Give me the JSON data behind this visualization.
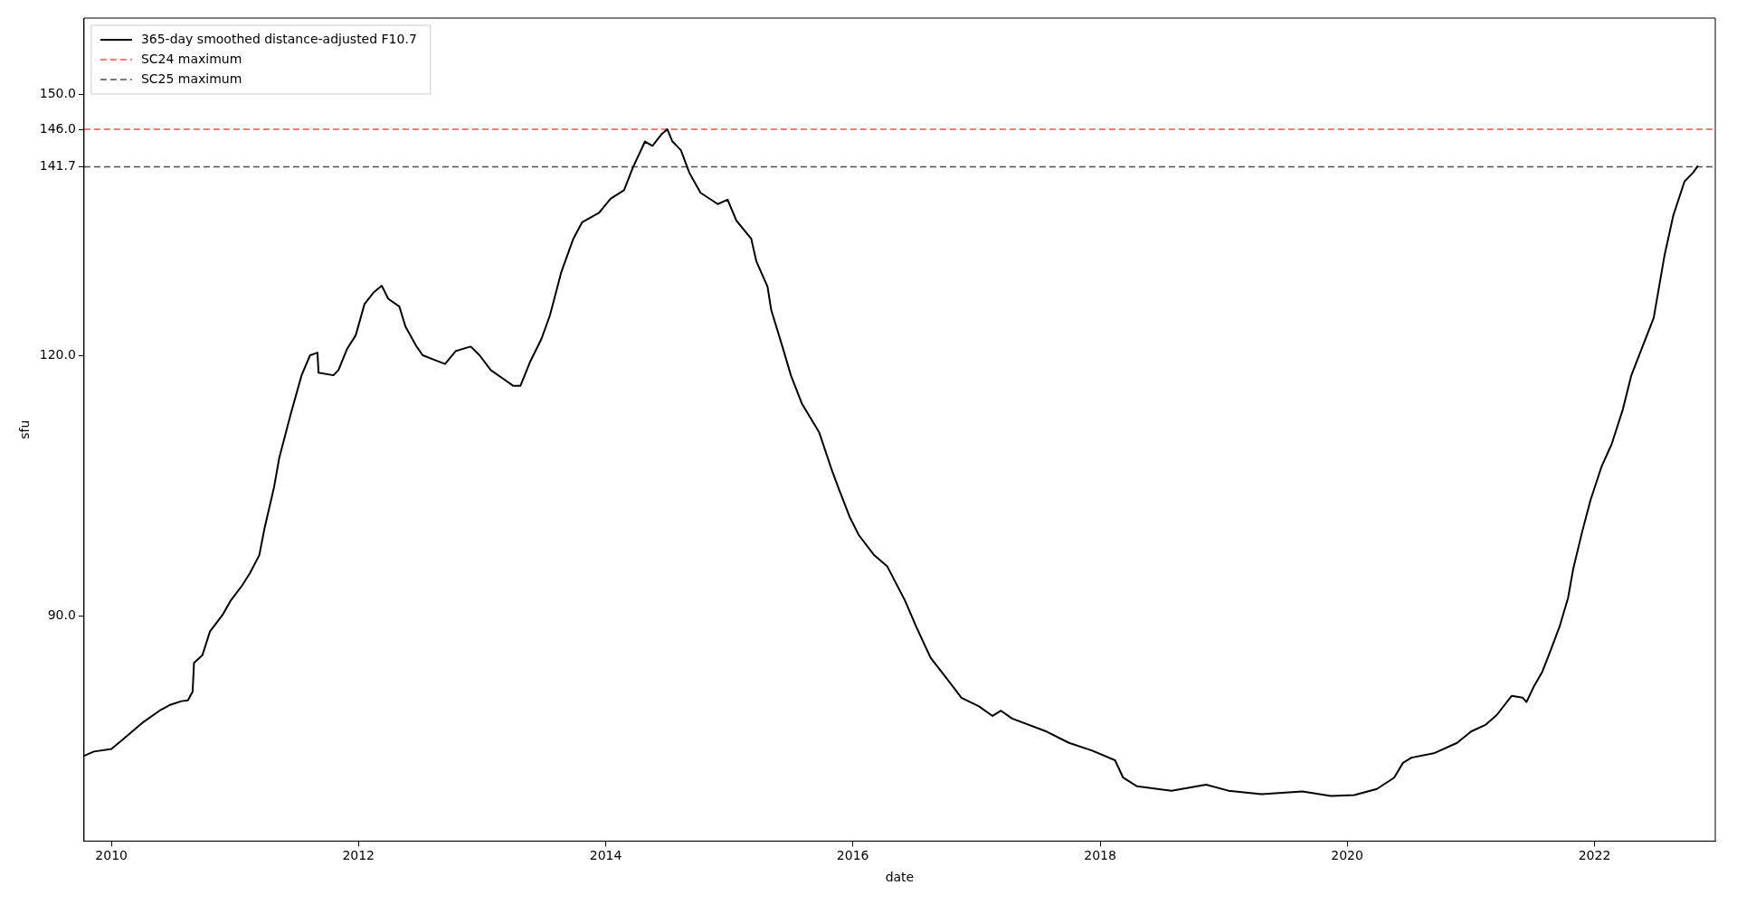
{
  "chart_data": {
    "type": "line",
    "xlabel": "date",
    "ylabel": "sfu",
    "x": [
      "2009-10-12",
      "2009-11-10",
      "2010-01-01",
      "2010-02-10",
      "2010-04-02",
      "2010-05-23",
      "2010-06-25",
      "2010-07-27",
      "2010-08-15",
      "2010-08-29",
      "2010-09-02",
      "2010-09-27",
      "2010-10-19",
      "2010-11-25",
      "2010-12-20",
      "2011-01-22",
      "2011-02-14",
      "2011-03-14",
      "2011-03-29",
      "2011-04-27",
      "2011-05-12",
      "2011-06-14",
      "2011-07-17",
      "2011-08-11",
      "2011-09-02",
      "2011-09-05",
      "2011-10-19",
      "2011-11-03",
      "2011-11-28",
      "2011-12-24",
      "2012-01-19",
      "2012-02-14",
      "2012-03-10",
      "2012-03-29",
      "2012-05-01",
      "2012-05-19",
      "2012-06-21",
      "2012-07-09",
      "2012-08-11",
      "2012-09-13",
      "2012-10-15",
      "2012-11-28",
      "2012-12-24",
      "2013-01-26",
      "2013-02-28",
      "2013-04-02",
      "2013-04-24",
      "2013-05-23",
      "2013-06-25",
      "2013-07-20",
      "2013-08-22",
      "2013-09-27",
      "2013-10-23",
      "2013-12-12",
      "2014-01-15",
      "2014-02-24",
      "2014-03-22",
      "2014-04-27",
      "2014-05-19",
      "2014-06-14",
      "2014-07-02",
      "2014-07-17",
      "2014-08-11",
      "2014-09-05",
      "2014-10-08",
      "2014-11-28",
      "2014-12-27",
      "2015-01-22",
      "2015-03-07",
      "2015-03-22",
      "2015-04-24",
      "2015-05-05",
      "2015-06-07",
      "2015-07-02",
      "2015-08-04",
      "2015-09-24",
      "2015-10-30",
      "2015-11-21",
      "2015-12-24",
      "2016-01-19",
      "2016-03-04",
      "2016-04-12",
      "2016-06-03",
      "2016-07-06",
      "2016-08-18",
      "2016-09-27",
      "2016-11-17",
      "2017-01-08",
      "2017-02-17",
      "2017-03-14",
      "2017-04-16",
      "2017-07-27",
      "2017-10-01",
      "2017-12-09",
      "2018-02-14",
      "2018-03-10",
      "2018-04-20",
      "2018-07-31",
      "2018-11-10",
      "2019-01-15",
      "2019-04-23",
      "2019-08-22",
      "2019-11-14",
      "2020-01-22",
      "2020-03-29",
      "2020-05-19",
      "2020-06-14",
      "2020-07-09",
      "2020-09-13",
      "2020-11-21",
      "2021-01-01",
      "2021-02-14",
      "2021-03-18",
      "2021-05-01",
      "2021-06-03",
      "2021-06-14",
      "2021-07-06",
      "2021-07-31",
      "2021-08-26",
      "2021-09-20",
      "2021-10-15",
      "2021-10-30",
      "2021-11-25",
      "2021-12-20",
      "2022-01-22",
      "2022-02-21",
      "2022-03-26",
      "2022-04-20",
      "2022-05-23",
      "2022-06-25",
      "2022-07-27",
      "2022-08-22",
      "2022-09-24",
      "2022-10-19",
      "2022-11-03"
    ],
    "series": [
      {
        "name": "365-day smoothed distance-adjusted F10.7",
        "color": "#000000",
        "values": [
          73.9,
          74.4,
          74.7,
          76.0,
          77.7,
          79.1,
          79.8,
          80.2,
          80.3,
          81.3,
          84.6,
          85.5,
          88.2,
          90.1,
          91.8,
          93.5,
          94.9,
          97.0,
          100.0,
          104.9,
          108.2,
          113.1,
          117.7,
          120.0,
          120.3,
          118.0,
          117.7,
          118.3,
          120.7,
          122.3,
          125.9,
          127.2,
          128.0,
          126.5,
          125.6,
          123.3,
          121.0,
          120.0,
          119.5,
          119.0,
          120.5,
          121.0,
          120.0,
          118.3,
          117.4,
          116.5,
          116.5,
          119.3,
          121.9,
          124.6,
          129.5,
          133.4,
          135.3,
          136.4,
          138.0,
          139.0,
          141.6,
          144.6,
          144.1,
          145.4,
          146.0,
          144.6,
          143.6,
          141.0,
          138.7,
          137.4,
          137.9,
          135.5,
          133.4,
          130.8,
          127.9,
          125.2,
          121.0,
          117.7,
          114.4,
          111.1,
          106.9,
          104.6,
          101.3,
          99.3,
          97.0,
          95.7,
          91.8,
          88.8,
          85.2,
          83.2,
          80.6,
          79.6,
          78.5,
          79.1,
          78.2,
          76.7,
          75.4,
          74.5,
          73.4,
          71.4,
          70.4,
          69.9,
          70.6,
          69.9,
          69.5,
          69.8,
          69.3,
          69.4,
          70.1,
          71.4,
          73.1,
          73.7,
          74.2,
          75.4,
          76.7,
          77.5,
          78.6,
          80.8,
          80.6,
          80.1,
          81.9,
          83.6,
          86.2,
          88.8,
          92.1,
          95.4,
          99.6,
          103.3,
          107.2,
          109.8,
          113.8,
          117.7,
          121.0,
          124.3,
          131.5,
          136.1,
          140.0,
          141.0,
          141.8
        ]
      }
    ],
    "ref_lines": [
      {
        "axis": "y",
        "value": 146.0,
        "label": "SC24 maximum",
        "color": "#ff4d4d",
        "line_style": "dashed"
      },
      {
        "axis": "y",
        "value": 141.7,
        "label": "SC25 maximum",
        "color": "#4d4d4d",
        "line_style": "dashed"
      }
    ],
    "xlim": [
      "2009-10-12",
      "2022-12-24"
    ],
    "xticks": [
      {
        "value": "2010",
        "label": "2010"
      },
      {
        "value": "2012",
        "label": "2012"
      },
      {
        "value": "2014",
        "label": "2014"
      },
      {
        "value": "2016",
        "label": "2016"
      },
      {
        "value": "2018",
        "label": "2018"
      },
      {
        "value": "2020",
        "label": "2020"
      },
      {
        "value": "2022",
        "label": "2022"
      }
    ],
    "ylim": [
      64.1,
      158.8
    ],
    "yticks": [
      {
        "value": 90,
        "label": "90.0"
      },
      {
        "value": 120,
        "label": "120.0"
      },
      {
        "value": 141.7,
        "label": "141.7"
      },
      {
        "value": 146,
        "label": "146.0"
      },
      {
        "value": 150,
        "label": "150.0"
      }
    ],
    "grid": false,
    "legend": "top left",
    "marker": "none",
    "line_style": "solid"
  }
}
